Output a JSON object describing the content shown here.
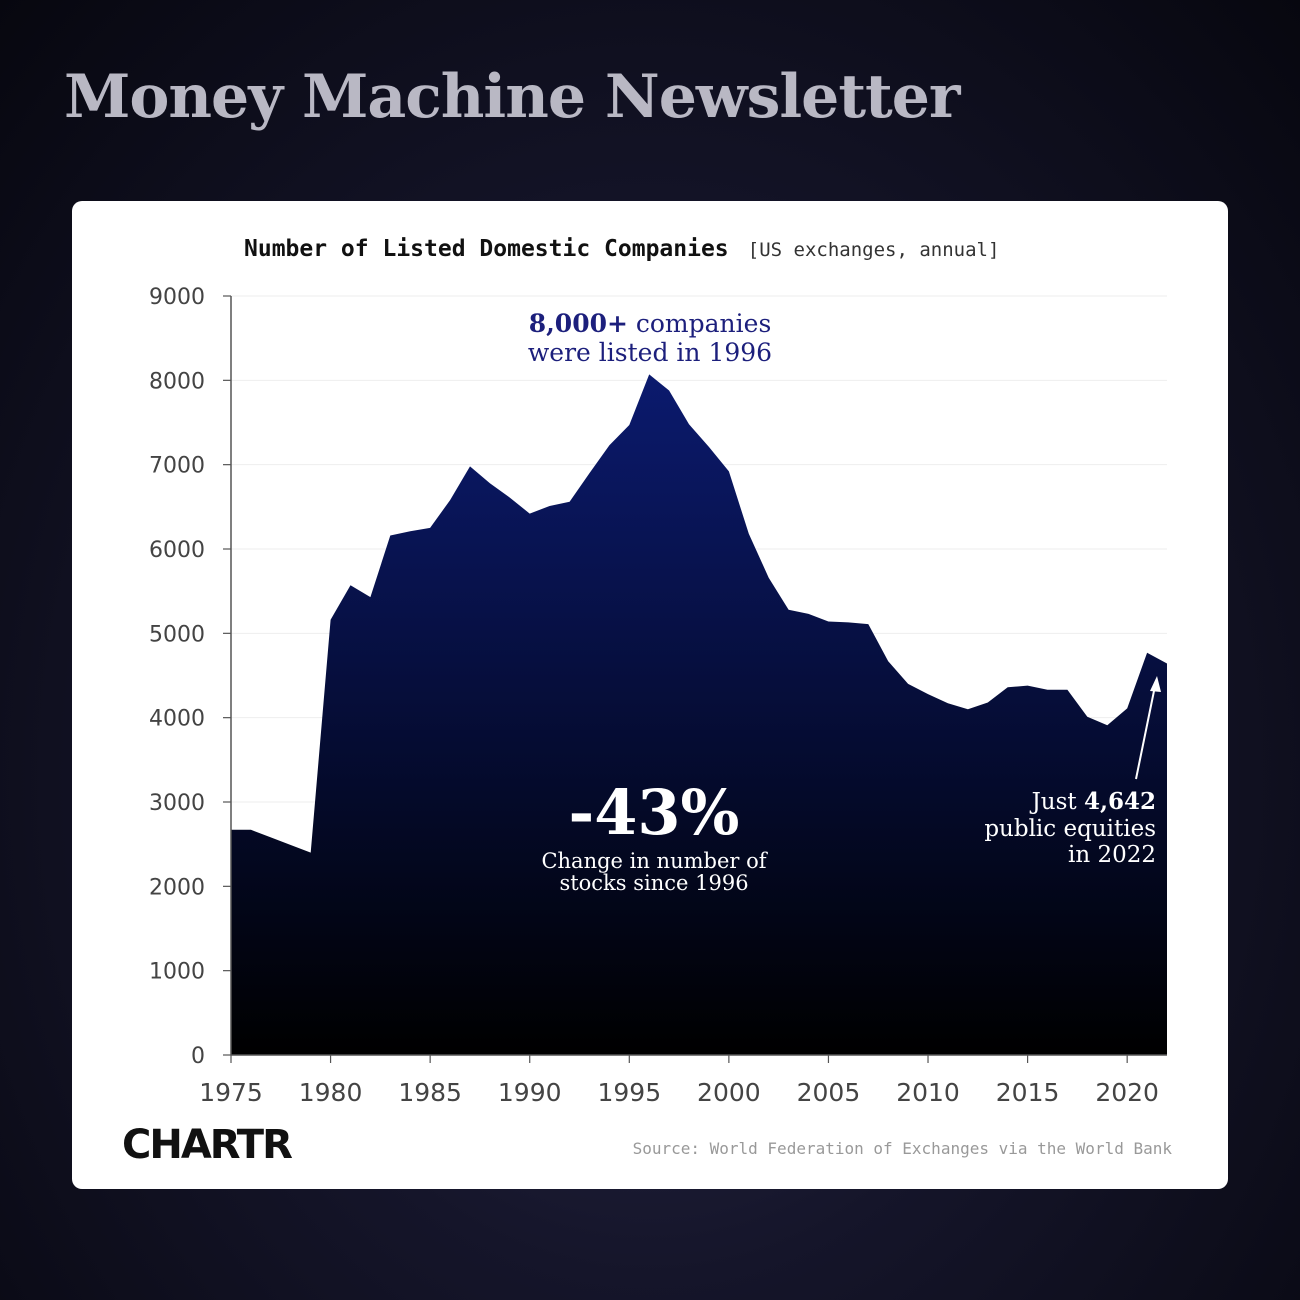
{
  "header": {
    "title": "Money Machine Newsletter"
  },
  "chart_data": {
    "type": "area",
    "title": "Number of Listed Domestic Companies",
    "subtitle": "[US exchanges, annual]",
    "xlabel": "",
    "ylabel": "",
    "xlim": [
      1975,
      2022
    ],
    "ylim": [
      0,
      9000
    ],
    "x_ticks": [
      "1975",
      "1980",
      "1985",
      "1990",
      "1995",
      "2000",
      "2005",
      "2010",
      "2015",
      "2020"
    ],
    "y_ticks": [
      "0",
      "1000",
      "2000",
      "3000",
      "4000",
      "5000",
      "6000",
      "7000",
      "8000",
      "9000"
    ],
    "grid": "horizontal",
    "fill_color_top": "#0b1a6e",
    "fill_color_bottom": "#000000",
    "series": [
      {
        "x": [
          1975,
          1976,
          1977,
          1978,
          1979,
          1980,
          1981,
          1982,
          1983,
          1984,
          1985,
          1986,
          1987,
          1988,
          1989,
          1990,
          1991,
          1992,
          1993,
          1994,
          1995,
          1996,
          1997,
          1998,
          1999,
          2000,
          2001,
          2002,
          2003,
          2004,
          2005,
          2006,
          2007,
          2008,
          2009,
          2010,
          2011,
          2012,
          2013,
          2014,
          2015,
          2016,
          2017,
          2018,
          2019,
          2020,
          2021,
          2022
        ],
        "values": [
          2670,
          2670,
          2580,
          2490,
          2400,
          5160,
          5570,
          5430,
          6160,
          6210,
          6250,
          6580,
          6980,
          6780,
          6610,
          6420,
          6510,
          6560,
          6900,
          7230,
          7470,
          8070,
          7880,
          7480,
          7210,
          6920,
          6180,
          5660,
          5280,
          5230,
          5140,
          5130,
          5110,
          4670,
          4400,
          4280,
          4170,
          4100,
          4180,
          4360,
          4380,
          4330,
          4330,
          4010,
          3910,
          4110,
          4770,
          4642
        ]
      }
    ],
    "annotations": {
      "peak_line1_bold": "8,000+",
      "peak_line1_rest": " companies",
      "peak_line2": "were listed in 1996",
      "change_value": "-43%",
      "change_line1": "Change in number of",
      "change_line2": "stocks since 1996",
      "latest_prefix": "Just ",
      "latest_value": "4,642",
      "latest_line2": "public equities",
      "latest_line3": "in 2022"
    },
    "source": "Source: World Federation of Exchanges via the World Bank"
  },
  "brand": {
    "logo_text": "CHARTR"
  }
}
